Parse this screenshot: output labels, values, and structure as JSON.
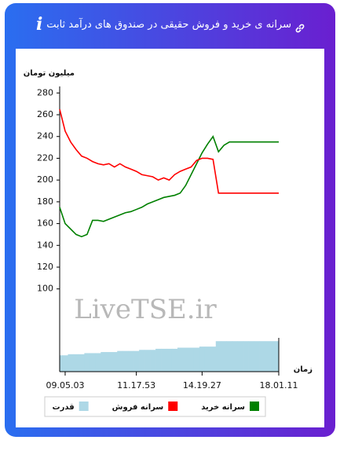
{
  "chart_data": {
    "type": "line",
    "title": "سرانه ی خرید و فروش حقیقی در صندوق های درآمد ثابت",
    "y_label": "میلیون تومان",
    "x_label": "زمان",
    "watermark": "LiveTSE.ir",
    "categories": [
      null,
      "09.05.03",
      null,
      null,
      null,
      null,
      null,
      null,
      null,
      null,
      null,
      null,
      null,
      null,
      "11.17.53",
      null,
      null,
      null,
      null,
      null,
      null,
      null,
      null,
      null,
      null,
      null,
      "14.19.27",
      null,
      null,
      null,
      null,
      null,
      null,
      null,
      null,
      null,
      null,
      null,
      null,
      null,
      "18.01.11"
    ],
    "ylim": [
      24,
      286
    ],
    "yticks": [
      100,
      120,
      140,
      160,
      180,
      200,
      220,
      240,
      260,
      280
    ],
    "series": [
      {
        "name": "سرانه خرید",
        "color": "#008000",
        "values": [
          175,
          160,
          155,
          150,
          148,
          150,
          163,
          163,
          162,
          164,
          166,
          168,
          170,
          171,
          173,
          175,
          178,
          180,
          182,
          184,
          185,
          186,
          188,
          195,
          205,
          215,
          225,
          233,
          240,
          226,
          232,
          235,
          235,
          235,
          235,
          235,
          235,
          235,
          235,
          235,
          235
        ]
      },
      {
        "name": "سرانه فروش",
        "color": "#ff0000",
        "values": [
          265,
          245,
          235,
          228,
          222,
          220,
          217,
          215,
          214,
          215,
          212,
          215,
          212,
          210,
          208,
          205,
          204,
          203,
          200,
          202,
          200,
          205,
          208,
          210,
          212,
          218,
          220,
          220,
          219,
          188,
          188,
          188,
          188,
          188,
          188,
          188,
          188,
          188,
          188,
          188,
          188
        ]
      },
      {
        "name": "قدرت",
        "color": "#add8e6",
        "kind": "area",
        "values": [
          39,
          39,
          40,
          40,
          40,
          41,
          41,
          41,
          42,
          42,
          42,
          43,
          43,
          43,
          43,
          44,
          44,
          44,
          45,
          45,
          45,
          45,
          46,
          46,
          46,
          46,
          47,
          47,
          47,
          52,
          52,
          52,
          52,
          52,
          52,
          52,
          52,
          52,
          52,
          52,
          52
        ]
      }
    ]
  }
}
